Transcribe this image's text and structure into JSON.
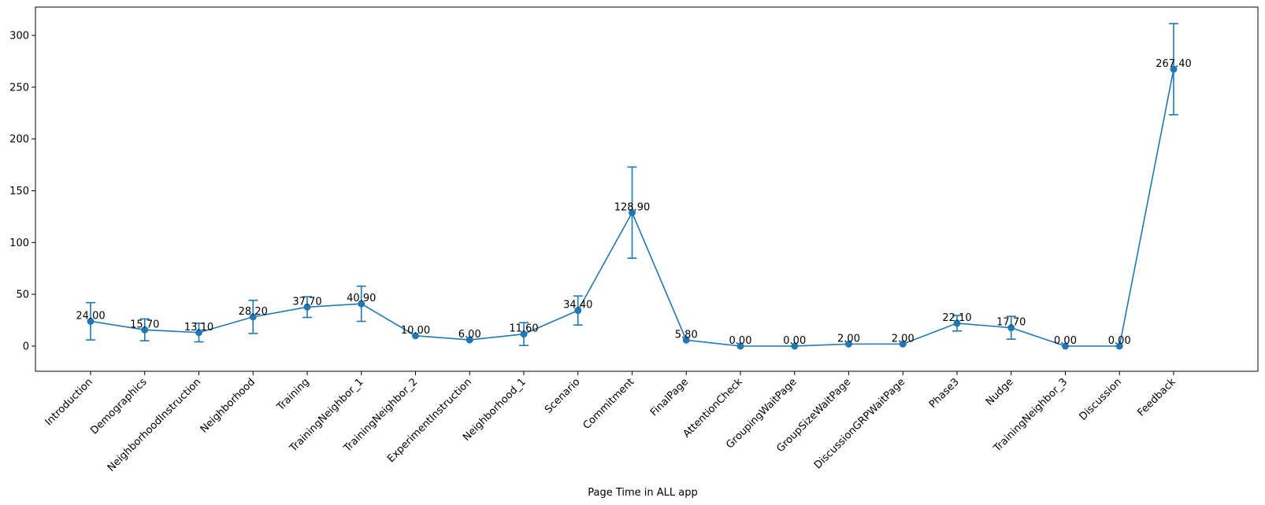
{
  "chart_data": {
    "type": "line",
    "title": "",
    "xlabel": "Page Time in ALL app",
    "ylabel": "",
    "ylim": [
      -15,
      325
    ],
    "yticks": [
      0,
      50,
      100,
      150,
      200,
      250,
      300
    ],
    "grid": false,
    "color": "#1f77b4",
    "categories": [
      "Introduction",
      "Demographics",
      "NeighborhoodInstruction",
      "Neighborhood",
      "Training",
      "TrainingNeighbor_1",
      "TrainingNeighbor_2",
      "ExperimentInstruction",
      "Neighborhood_1",
      "Scenario",
      "Commitment",
      "FinalPage",
      "AttentionCheck",
      "GroupingWaitPage",
      "GroupSizeWaitPage",
      "DiscussionGRPWaitPage",
      "Phase3",
      "Nudge",
      "TrainingNeighbor_3",
      "Discussion",
      "Feedback"
    ],
    "values": [
      24.0,
      15.7,
      13.1,
      28.2,
      37.7,
      40.9,
      10.0,
      6.0,
      11.6,
      34.4,
      128.9,
      5.8,
      0.0,
      0.0,
      2.0,
      2.0,
      22.1,
      17.7,
      0.0,
      0.0,
      267.4
    ],
    "error": [
      18,
      10.5,
      9,
      16,
      10,
      17,
      0,
      0,
      11,
      14,
      44,
      0,
      0,
      0,
      0,
      0,
      7.5,
      11,
      0,
      0,
      44
    ],
    "labels": [
      "24.00",
      "15.70",
      "13.10",
      "28.20",
      "37.70",
      "40.90",
      "10.00",
      "6.00",
      "11.60",
      "34.40",
      "128.90",
      "5.80",
      "0.00",
      "0.00",
      "2.00",
      "2.00",
      "22.10",
      "17.70",
      "0.00",
      "0.00",
      "267.40"
    ]
  }
}
